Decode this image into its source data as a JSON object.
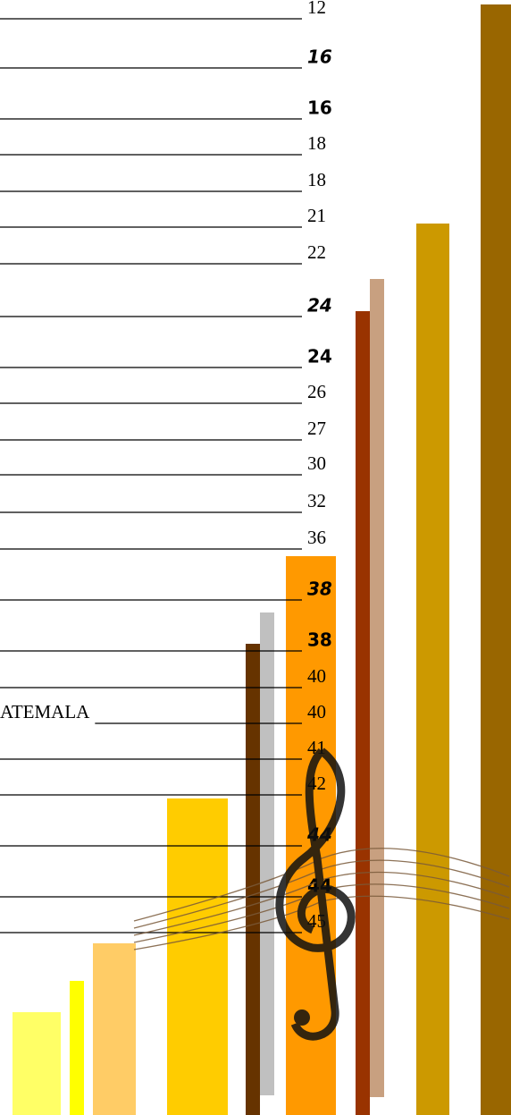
{
  "entries": [
    {
      "page": 12
    },
    {
      "page": 16
    },
    {
      "page": 16
    },
    {
      "page": 18
    },
    {
      "page": 18
    },
    {
      "page": 21
    },
    {
      "page": 22
    },
    {
      "page": 24
    },
    {
      "page": 24
    },
    {
      "page": 26
    },
    {
      "page": 27
    },
    {
      "page": 30
    },
    {
      "page": 32
    },
    {
      "page": 36
    },
    {
      "page": 38
    },
    {
      "page": 38
    },
    {
      "page": 40
    },
    {
      "title": "ATEMALA",
      "page": 40
    },
    {
      "page": 41
    },
    {
      "page": 42
    },
    {
      "page": 44
    },
    {
      "page": 44
    },
    {
      "page": 45
    }
  ]
}
